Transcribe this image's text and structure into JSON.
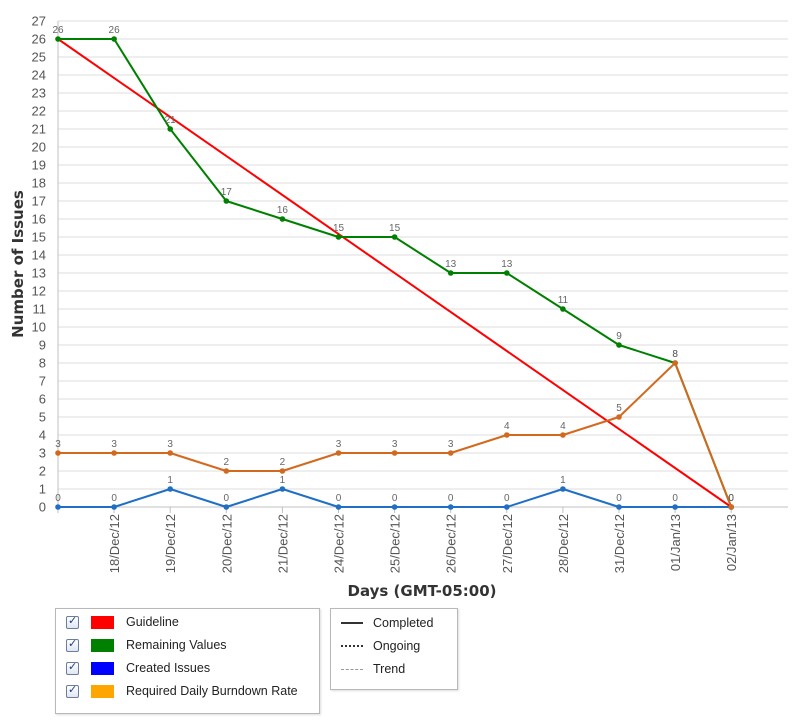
{
  "chart_data": {
    "type": "line",
    "xlabel": "Days (GMT-05:00)",
    "ylabel": "Number of Issues",
    "categories": [
      "",
      "18/Dec/12",
      "19/Dec/12",
      "20/Dec/12",
      "21/Dec/12",
      "24/Dec/12",
      "25/Dec/12",
      "26/Dec/12",
      "27/Dec/12",
      "28/Dec/12",
      "31/Dec/12",
      "01/Jan/13",
      "02/Jan/13"
    ],
    "ylim": [
      0,
      27
    ],
    "yticks": [
      0,
      1,
      2,
      3,
      4,
      5,
      6,
      7,
      8,
      9,
      10,
      11,
      12,
      13,
      14,
      15,
      16,
      17,
      18,
      19,
      20,
      21,
      22,
      23,
      24,
      25,
      26,
      27
    ],
    "grid": true,
    "series": [
      {
        "name": "Guideline",
        "color": "#ff0000",
        "values": [
          26,
          null,
          null,
          null,
          null,
          null,
          null,
          null,
          null,
          null,
          null,
          null,
          0
        ],
        "labels": false
      },
      {
        "name": "Remaining Values",
        "color": "#008000",
        "values": [
          26,
          26,
          21,
          17,
          16,
          15,
          15,
          13,
          13,
          11,
          9,
          8,
          0
        ],
        "labels": true
      },
      {
        "name": "Created Issues",
        "color": "#1f6fc5",
        "values": [
          0,
          0,
          1,
          0,
          1,
          0,
          0,
          0,
          0,
          1,
          0,
          0,
          0
        ],
        "labels": true
      },
      {
        "name": "Required Daily Burndown Rate",
        "color": "#d2691e",
        "values": [
          3,
          3,
          3,
          2,
          2,
          3,
          3,
          3,
          4,
          4,
          5,
          8,
          0
        ],
        "labels": true
      }
    ]
  },
  "legend": {
    "series": [
      {
        "label": "Guideline",
        "color": "#ff0000",
        "checked": true
      },
      {
        "label": "Remaining Values",
        "color": "#008000",
        "checked": true
      },
      {
        "label": "Created Issues",
        "color": "#0000ff",
        "checked": true
      },
      {
        "label": "Required Daily Burndown Rate",
        "color": "#ffa500",
        "checked": true
      }
    ],
    "styles": [
      {
        "label": "Completed",
        "style": "solid"
      },
      {
        "label": "Ongoing",
        "style": "dotted"
      },
      {
        "label": "Trend",
        "style": "dashed"
      }
    ]
  }
}
